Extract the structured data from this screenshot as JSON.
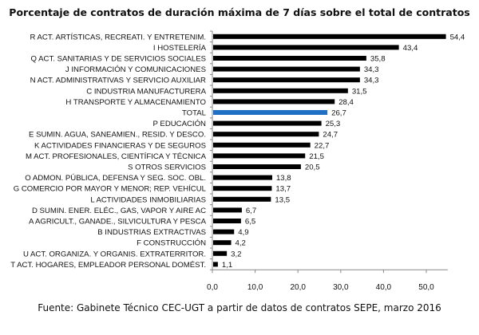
{
  "chart_data": {
    "type": "bar",
    "orientation": "horizontal",
    "title": "Porcentaje de contratos de duración máxima de 7 días sobre el total de contratos",
    "source": "Fuente: Gabinete Técnico CEC-UGT a partir de datos de contratos SEPE, marzo 2016",
    "categories": [
      "R ACT. ARTÍSTICAS, RECREATI. Y ENTRETENIM.",
      "I HOSTELERÍA",
      "Q ACT. SANITARIAS Y DE SERVICIOS SOCIALES",
      "J INFORMACIÓN Y COMUNICACIONES",
      "N ACT. ADMINISTRATIVAS Y SERVICIO AUXILIAR",
      "C INDUSTRIA MANUFACTURERA",
      "H TRANSPORTE Y ALMACENAMIENTO",
      "TOTAL",
      "P EDUCACIÓN",
      "E SUMIN. AGUA, SANEAMIEN., RESID. Y DESCO.",
      "K ACTIVIDADES FINANCIERAS Y DE SEGUROS",
      "M ACT. PROFESIONALES, CIENTÍFICA Y TÉCNICA",
      "S OTROS SERVICIOS",
      "O ADMON. PÚBLICA, DEFENSA Y SEG. SOC. OBL.",
      "G COMERCIO POR MAYOR Y MENOR; REP. VEHÍCUL",
      "L ACTIVIDADES INMOBILIARIAS",
      "D SUMIN. ENER. ELÉC., GAS, VAPOR Y AIRE AC",
      "A AGRICULT., GANADE., SILVICULTURA Y PESCA",
      "B INDUSTRIAS EXTRACTIVAS",
      "F CONSTRUCCIÓN",
      "U ACT. ORGANIZA. Y ORGANIS. EXTRATERRITOR.",
      "T ACT. HOGARES, EMPLEADOR PERSONAL DOMÉST."
    ],
    "values": [
      54.4,
      43.4,
      35.8,
      34.3,
      34.3,
      31.5,
      28.4,
      26.7,
      25.3,
      24.7,
      22.7,
      21.5,
      20.5,
      13.8,
      13.7,
      13.5,
      6.7,
      6.5,
      4.9,
      4.2,
      3.2,
      1.1
    ],
    "data_labels": [
      "54,4",
      "43,4",
      "35,8",
      "34,3",
      "34,3",
      "31,5",
      "28,4",
      "26,7",
      "25,3",
      "24,7",
      "22,7",
      "21,5",
      "20,5",
      "13,8",
      "13,7",
      "13,5",
      "6,7",
      "6,5",
      "4,9",
      "4,2",
      "3,2",
      "1,1"
    ],
    "xlim": [
      0,
      55
    ],
    "xticks": [
      "0,0",
      "10,0",
      "20,0",
      "30,0",
      "40,0",
      "50,0"
    ],
    "xtick_values": [
      0,
      10,
      20,
      30,
      40,
      50
    ],
    "grid": false,
    "colors": {
      "bar": "#000000",
      "highlight": "#1f6fc5"
    },
    "highlight_category": "TOTAL"
  }
}
